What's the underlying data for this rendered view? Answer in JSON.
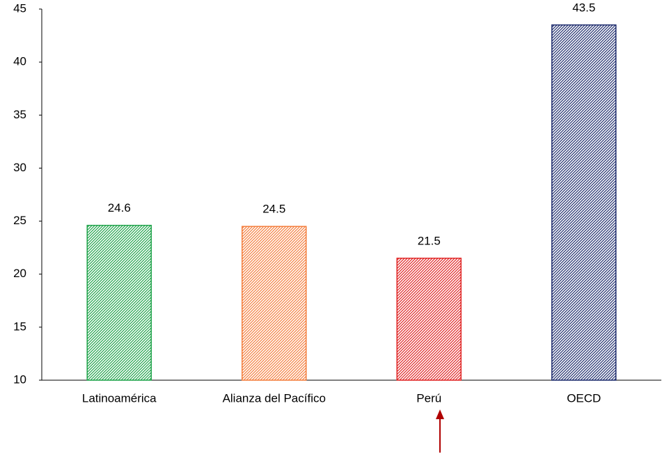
{
  "chart_data": {
    "type": "bar",
    "categories": [
      "Latinoamérica",
      "Alianza del Pacífico",
      "Perú",
      "OECD"
    ],
    "values": [
      24.6,
      24.5,
      21.5,
      43.5
    ],
    "colors": [
      "#1fa34a",
      "#f47d3c",
      "#e02424",
      "#1f2d6e"
    ],
    "ylim": [
      10,
      45
    ],
    "yticks": [
      10,
      15,
      20,
      25,
      30,
      35,
      40,
      45
    ],
    "grid": false
  }
}
